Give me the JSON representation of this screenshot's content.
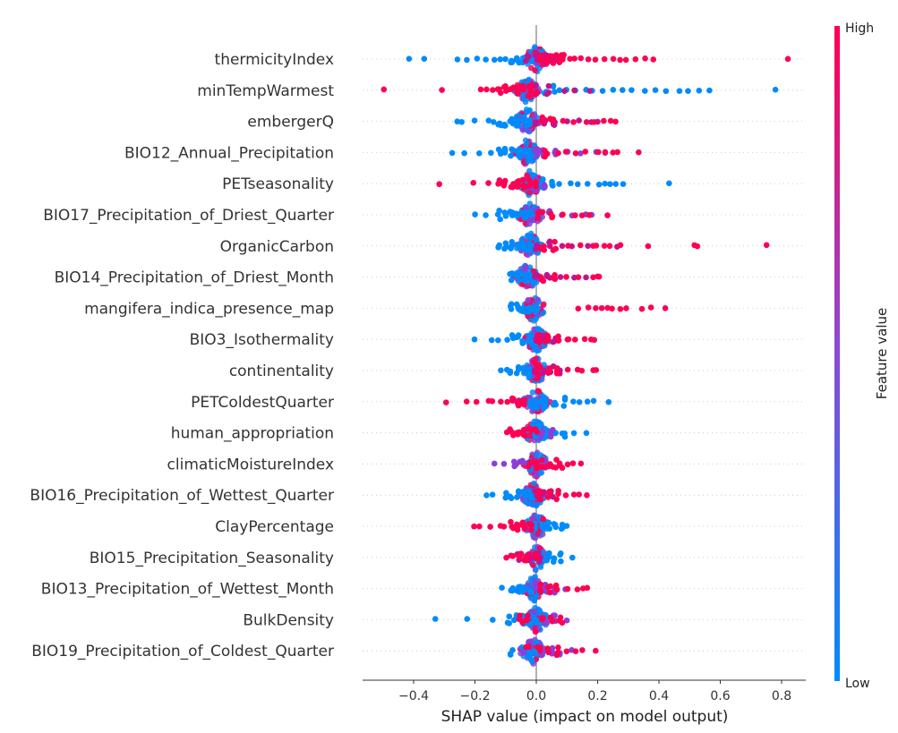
{
  "chart_data": {
    "type": "scatter",
    "subtype": "shap-beeswarm",
    "title": "",
    "xlabel": "SHAP value (impact on model output)",
    "ylabel": "",
    "xlim": [
      -0.56,
      0.88
    ],
    "xticks": [
      -0.4,
      -0.2,
      0.0,
      0.2,
      0.4,
      0.6,
      0.8
    ],
    "xtick_labels": [
      "−0.4",
      "−0.2",
      "0.0",
      "0.2",
      "0.4",
      "0.6",
      "0.8"
    ],
    "grid": "dotted horizontal row guides",
    "colorbar": {
      "title": "Feature value",
      "high_label": "High",
      "low_label": "Low",
      "high_color": "#ff0052",
      "low_color": "#008bfb",
      "placement": "right"
    },
    "features": [
      {
        "name": "thermicityIndex",
        "low": [
          -0.41,
          -0.37,
          -0.26,
          -0.23,
          -0.19,
          -0.16,
          -0.14,
          -0.12,
          -0.1,
          -0.08,
          -0.06,
          -0.04,
          -0.02
        ],
        "mid": [
          -0.03,
          0.0,
          0.02,
          0.04,
          0.06,
          0.08
        ],
        "high": [
          0.01,
          0.03,
          0.05,
          0.07,
          0.09,
          0.11,
          0.13,
          0.15,
          0.17,
          0.19,
          0.22,
          0.25,
          0.27,
          0.29,
          0.32,
          0.36,
          0.38,
          0.82
        ],
        "center": 0.0
      },
      {
        "name": "minTempWarmest",
        "low": [
          0.03,
          0.06,
          0.08,
          0.1,
          0.13,
          0.16,
          0.18,
          0.22,
          0.25,
          0.28,
          0.31,
          0.35,
          0.39,
          0.42,
          0.47,
          0.49,
          0.53,
          0.56,
          0.78
        ],
        "mid": [
          0.0,
          0.04,
          0.09,
          0.12,
          0.17
        ],
        "high": [
          -0.5,
          -0.31,
          -0.18,
          -0.16,
          -0.14,
          -0.12,
          -0.1,
          -0.08,
          -0.06,
          -0.04,
          -0.02,
          0.0
        ],
        "center": -0.03
      },
      {
        "name": "embergerQ",
        "low": [
          -0.26,
          -0.24,
          -0.2,
          -0.16,
          -0.14,
          -0.12,
          -0.1,
          -0.08,
          -0.06,
          -0.04,
          -0.02
        ],
        "mid": [
          0.0,
          0.03,
          0.06,
          0.1,
          0.14,
          0.18,
          0.2
        ],
        "high": [
          0.02,
          0.05,
          0.09,
          0.12,
          0.16,
          0.19,
          0.22,
          0.24,
          0.26
        ],
        "center": -0.03
      },
      {
        "name": "BIO12_Annual_Precipitation",
        "low": [
          -0.27,
          -0.24,
          -0.19,
          -0.15,
          -0.12,
          -0.1,
          -0.08,
          -0.06,
          -0.04,
          -0.02
        ],
        "mid": [
          0.0,
          0.02,
          0.06,
          0.1,
          0.14,
          0.19,
          0.22
        ],
        "high": [
          0.03,
          0.07,
          0.1,
          0.13,
          0.16,
          0.2,
          0.23,
          0.25,
          0.27,
          0.33
        ],
        "center": -0.03
      },
      {
        "name": "PETseasonality",
        "low": [
          0.02,
          0.05,
          0.08,
          0.11,
          0.14,
          0.17,
          0.2,
          0.22,
          0.24,
          0.26,
          0.28,
          0.43
        ],
        "mid": [
          -0.02,
          0.0,
          0.03
        ],
        "high": [
          -0.32,
          -0.21,
          -0.16,
          -0.12,
          -0.1,
          -0.08,
          -0.06,
          -0.04,
          -0.02,
          0.0
        ],
        "center": -0.02
      },
      {
        "name": "BIO17_Precipitation_of_Driest_Quarter",
        "low": [
          -0.2,
          -0.16,
          -0.12,
          -0.1,
          -0.08,
          -0.06,
          -0.04,
          -0.02
        ],
        "mid": [
          0.0,
          0.04,
          0.08,
          0.12,
          0.16,
          0.18
        ],
        "high": [
          0.01,
          0.05,
          0.09,
          0.13,
          0.15,
          0.17,
          0.23
        ],
        "center": -0.02
      },
      {
        "name": "OrganicCarbon",
        "low": [
          -0.12,
          -0.1,
          -0.08,
          -0.06,
          -0.04,
          -0.02,
          0.0
        ],
        "mid": [
          0.0,
          0.04,
          0.08,
          0.12,
          0.17,
          0.26
        ],
        "high": [
          0.02,
          0.06,
          0.1,
          0.14,
          0.18,
          0.2,
          0.22,
          0.24,
          0.27,
          0.37,
          0.52,
          0.53,
          0.75
        ],
        "center": -0.02
      },
      {
        "name": "BIO14_Precipitation_of_Driest_Month",
        "low": [
          -0.08,
          -0.06,
          -0.04,
          -0.02
        ],
        "mid": [
          0.0,
          0.04,
          0.08,
          0.12,
          0.16,
          0.2
        ],
        "high": [
          0.02,
          0.06,
          0.1,
          0.14,
          0.18,
          0.2
        ],
        "center": -0.03
      },
      {
        "name": "mangifera_indica_presence_map",
        "low": [
          -0.08,
          -0.06,
          -0.04,
          -0.02,
          0.0
        ],
        "mid": [],
        "high": [
          0.14,
          0.17,
          0.19,
          0.21,
          0.23,
          0.25,
          0.27,
          0.29,
          0.35,
          0.37,
          0.42
        ],
        "center": -0.01
      },
      {
        "name": "BIO3_Isothermality",
        "low": [
          -0.2,
          -0.15,
          -0.12,
          -0.1,
          -0.08,
          -0.06,
          -0.04,
          -0.02
        ],
        "mid": [
          0.0,
          0.02,
          0.06,
          0.1
        ],
        "high": [
          0.01,
          0.04,
          0.07,
          0.1,
          0.13,
          0.16,
          0.18,
          0.19
        ],
        "center": 0.0
      },
      {
        "name": "continentality",
        "low": [
          -0.12,
          -0.1,
          -0.08,
          -0.06,
          -0.04,
          -0.02
        ],
        "mid": [
          0.0,
          0.02,
          0.05,
          0.08
        ],
        "high": [
          0.01,
          0.04,
          0.07,
          0.1,
          0.13,
          0.15,
          0.19,
          0.2
        ],
        "center": 0.0
      },
      {
        "name": "PETColdestQuarter",
        "low": [
          -0.02,
          0.0,
          0.03,
          0.06,
          0.09,
          0.12,
          0.14,
          0.17,
          0.19,
          0.24
        ],
        "mid": [
          -0.04,
          -0.06
        ],
        "high": [
          -0.3,
          -0.23,
          -0.19,
          -0.16,
          -0.14,
          -0.12,
          -0.1,
          -0.08,
          -0.06,
          -0.04
        ],
        "center": 0.0
      },
      {
        "name": "human_appropriation",
        "low": [
          0.0,
          0.03,
          0.06,
          0.09,
          0.12,
          0.16
        ],
        "mid": [
          0.02,
          0.05
        ],
        "high": [
          -0.1,
          -0.08,
          -0.06,
          -0.04,
          -0.02,
          0.0
        ],
        "center": 0.0
      },
      {
        "name": "climaticMoistureIndex",
        "low": [
          -0.02,
          0.0,
          0.02
        ],
        "mid": [
          -0.14,
          -0.1,
          -0.07,
          -0.05,
          -0.03,
          0.0,
          0.03
        ],
        "high": [
          -0.02,
          0.0,
          0.02,
          0.04,
          0.06,
          0.08,
          0.1,
          0.12,
          0.15
        ],
        "center": 0.0
      },
      {
        "name": "BIO16_Precipitation_of_Wettest_Quarter",
        "low": [
          -0.16,
          -0.14,
          -0.1,
          -0.08,
          -0.06,
          -0.04,
          -0.02
        ],
        "mid": [
          0.0,
          0.02,
          0.05
        ],
        "high": [
          0.01,
          0.04,
          0.07,
          0.1,
          0.12,
          0.14,
          0.16
        ],
        "center": -0.01
      },
      {
        "name": "ClayPercentage",
        "low": [
          0.0,
          0.02,
          0.04,
          0.06,
          0.08,
          0.1
        ],
        "mid": [
          -0.02
        ],
        "high": [
          -0.2,
          -0.18,
          -0.15,
          -0.12,
          -0.1,
          -0.08,
          -0.06,
          -0.04,
          -0.02
        ],
        "center": 0.0
      },
      {
        "name": "BIO15_Precipitation_Seasonality",
        "low": [
          0.0,
          0.02,
          0.04,
          0.06,
          0.08,
          0.12
        ],
        "mid": [
          -0.06,
          -0.02,
          0.01
        ],
        "high": [
          -0.1,
          -0.08,
          -0.05,
          -0.03,
          0.0
        ],
        "center": 0.0
      },
      {
        "name": "BIO13_Precipitation_of_Wettest_Month",
        "low": [
          -0.11,
          -0.08,
          -0.06,
          -0.04,
          -0.02
        ],
        "mid": [
          0.0,
          0.03,
          0.06,
          0.1
        ],
        "high": [
          0.01,
          0.04,
          0.07,
          0.1,
          0.13,
          0.15,
          0.17
        ],
        "center": -0.01
      },
      {
        "name": "BulkDensity",
        "low": [
          -0.33,
          -0.23,
          -0.14,
          -0.09,
          -0.07,
          -0.04,
          -0.02,
          0.0,
          0.02
        ],
        "mid": [
          0.03,
          0.06,
          0.1
        ],
        "high": [
          -0.05,
          -0.03,
          0.02,
          0.05,
          0.08
        ],
        "center": 0.0
      },
      {
        "name": "BIO19_Precipitation_of_Coldest_Quarter",
        "low": [
          -0.08,
          -0.02,
          0.0,
          0.02
        ],
        "mid": [
          0.02,
          0.05,
          0.08,
          0.11
        ],
        "high": [
          -0.03,
          0.01,
          0.04,
          0.07,
          0.1,
          0.13,
          0.15,
          0.19
        ],
        "center": -0.01
      }
    ]
  }
}
